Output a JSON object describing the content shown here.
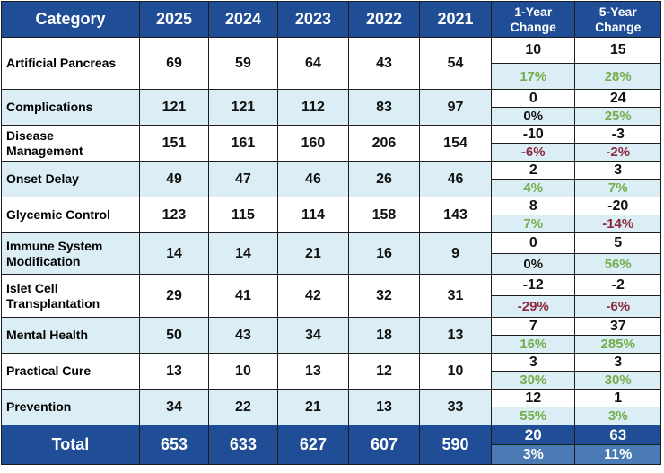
{
  "headers": {
    "category": "Category",
    "years": [
      "2025",
      "2024",
      "2023",
      "2022",
      "2021"
    ],
    "change1_line1": "1-Year",
    "change1_line2": "Change",
    "change5_line1": "5-Year",
    "change5_line2": "Change"
  },
  "rows": [
    {
      "label_line1": "Artificial Pancreas",
      "label_line2": "",
      "values": [
        "69",
        "59",
        "64",
        "43",
        "54"
      ],
      "c1": "10",
      "c1p": "17%",
      "c1s": "pos",
      "c5": "15",
      "c5p": "28%",
      "c5s": "pos"
    },
    {
      "label_line1": "Complications",
      "label_line2": "",
      "values": [
        "121",
        "121",
        "112",
        "83",
        "97"
      ],
      "c1": "0",
      "c1p": "0%",
      "c1s": "zero",
      "c5": "24",
      "c5p": "25%",
      "c5s": "pos"
    },
    {
      "label_line1": "Disease",
      "label_line2": "Management",
      "values": [
        "151",
        "161",
        "160",
        "206",
        "154"
      ],
      "c1": "-10",
      "c1p": "-6%",
      "c1s": "neg",
      "c5": "-3",
      "c5p": "-2%",
      "c5s": "neg"
    },
    {
      "label_line1": "Onset Delay",
      "label_line2": "",
      "values": [
        "49",
        "47",
        "46",
        "26",
        "46"
      ],
      "c1": "2",
      "c1p": "4%",
      "c1s": "pos",
      "c5": "3",
      "c5p": "7%",
      "c5s": "pos"
    },
    {
      "label_line1": "Glycemic Control",
      "label_line2": "",
      "values": [
        "123",
        "115",
        "114",
        "158",
        "143"
      ],
      "c1": "8",
      "c1p": "7%",
      "c1s": "pos",
      "c5": "-20",
      "c5p": "-14%",
      "c5s": "neg"
    },
    {
      "label_line1": "Immune System",
      "label_line2": "Modification",
      "values": [
        "14",
        "14",
        "21",
        "16",
        "9"
      ],
      "c1": "0",
      "c1p": "0%",
      "c1s": "zero",
      "c5": "5",
      "c5p": "56%",
      "c5s": "pos"
    },
    {
      "label_line1": "Islet Cell",
      "label_line2": "Transplantation",
      "values": [
        "29",
        "41",
        "42",
        "32",
        "31"
      ],
      "c1": "-12",
      "c1p": "-29%",
      "c1s": "neg",
      "c5": "-2",
      "c5p": "-6%",
      "c5s": "neg"
    },
    {
      "label_line1": "Mental Health",
      "label_line2": "",
      "values": [
        "50",
        "43",
        "34",
        "18",
        "13"
      ],
      "c1": "7",
      "c1p": "16%",
      "c1s": "pos",
      "c5": "37",
      "c5p": "285%",
      "c5s": "pos"
    },
    {
      "label_line1": "Practical Cure",
      "label_line2": "",
      "values": [
        "13",
        "10",
        "13",
        "12",
        "10"
      ],
      "c1": "3",
      "c1p": "30%",
      "c1s": "pos",
      "c5": "3",
      "c5p": "30%",
      "c5s": "pos"
    },
    {
      "label_line1": "Prevention",
      "label_line2": "",
      "values": [
        "34",
        "22",
        "21",
        "13",
        "33"
      ],
      "c1": "12",
      "c1p": "55%",
      "c1s": "pos",
      "c5": "1",
      "c5p": "3%",
      "c5s": "pos"
    }
  ],
  "total": {
    "label": "Total",
    "values": [
      "653",
      "633",
      "627",
      "607",
      "590"
    ],
    "c1": "20",
    "c1p": "3%",
    "c5": "63",
    "c5p": "11%"
  },
  "colors": {
    "header_bg": "#1f4e96",
    "alt_row_bg": "#dceef5",
    "positive": "#74ad4b",
    "negative": "#8b2a3e",
    "total_pct_bg": "#4b7bb5"
  }
}
